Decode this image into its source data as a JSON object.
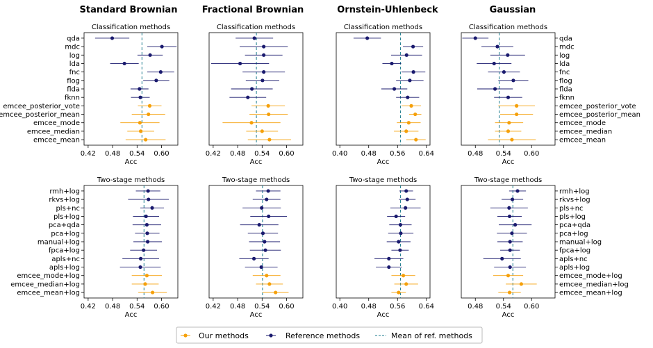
{
  "colors": {
    "ours": "#f5a00a",
    "reference": "#1a1a6e",
    "mean_line": "#1a7a8c"
  },
  "legend": {
    "ours": "Our methods",
    "reference": "Reference methods",
    "mean": "Mean of ref. methods",
    "placement": "bottom-center"
  },
  "chart_data": {
    "type": "scatter",
    "description_style": "forest plot with error bars",
    "column_titles": [
      "Standard Brownian",
      "Fractional Brownian",
      "Ornstein-Uhlenbeck",
      "Gaussian"
    ],
    "row_titles": [
      "Classification methods",
      "Two-stage methods"
    ],
    "xlabel": "Acc",
    "xticks": [
      [
        0.42,
        0.48,
        0.54,
        0.6
      ],
      [
        0.42,
        0.48,
        0.54,
        0.6
      ],
      [
        0.4,
        0.48,
        0.56,
        0.64
      ],
      [
        0.48,
        0.54,
        0.6
      ]
    ],
    "xlim": [
      [
        0.41,
        0.64
      ],
      [
        0.41,
        0.64
      ],
      [
        0.39,
        0.65
      ],
      [
        0.45,
        0.65
      ]
    ],
    "categories": [
      [
        "qda",
        "mdc",
        "log",
        "lda",
        "fnc",
        "flog",
        "flda",
        "fknn",
        "emcee_posterior_vote",
        "emcee_posterior_mean",
        "emcee_mode",
        "emcee_median",
        "emcee_mean"
      ],
      [
        "rmh+log",
        "rkvs+log",
        "pls+nc",
        "pls+log",
        "pca+qda",
        "pca+log",
        "manual+log",
        "fpca+log",
        "apls+nc",
        "apls+log",
        "emcee_mode+log",
        "emcee_median+log",
        "emcee_mean+log"
      ]
    ],
    "group": [
      [
        "ref",
        "ref",
        "ref",
        "ref",
        "ref",
        "ref",
        "ref",
        "ref",
        "ours",
        "ours",
        "ours",
        "ours",
        "ours"
      ],
      [
        "ref",
        "ref",
        "ref",
        "ref",
        "ref",
        "ref",
        "ref",
        "ref",
        "ref",
        "ref",
        "ours",
        "ours",
        "ours"
      ]
    ],
    "panels": [
      {
        "row": 0,
        "col": 0,
        "mean": 0.552,
        "values": [
          0.479,
          0.601,
          0.572,
          0.509,
          0.598,
          0.587,
          0.546,
          0.548,
          0.571,
          0.568,
          0.547,
          0.549,
          0.561
        ],
        "err": [
          0.042,
          0.036,
          0.031,
          0.035,
          0.033,
          0.032,
          0.022,
          0.023,
          0.029,
          0.041,
          0.048,
          0.033,
          0.049
        ]
      },
      {
        "row": 0,
        "col": 1,
        "mean": 0.526,
        "values": [
          0.521,
          0.544,
          0.544,
          0.486,
          0.544,
          0.541,
          0.515,
          0.505,
          0.555,
          0.556,
          0.514,
          0.54,
          0.558
        ],
        "err": [
          0.046,
          0.059,
          0.046,
          0.071,
          0.052,
          0.041,
          0.051,
          0.045,
          0.041,
          0.047,
          0.071,
          0.039,
          0.053
        ]
      },
      {
        "row": 0,
        "col": 2,
        "mean": 0.568,
        "values": [
          0.476,
          0.603,
          0.585,
          0.544,
          0.604,
          0.594,
          0.551,
          0.588,
          0.598,
          0.609,
          0.591,
          0.584,
          0.611
        ],
        "err": [
          0.038,
          0.028,
          0.043,
          0.026,
          0.033,
          0.038,
          0.036,
          0.032,
          0.027,
          0.017,
          0.033,
          0.034,
          0.027
        ]
      },
      {
        "row": 1,
        "col": 0,
        "mean": 0.557,
        "values": [
          0.567,
          0.568,
          0.577,
          0.562,
          0.564,
          0.565,
          0.566,
          0.556,
          0.549,
          0.548,
          0.564,
          0.56,
          0.578
        ],
        "err": [
          0.03,
          0.05,
          0.029,
          0.032,
          0.035,
          0.03,
          0.035,
          0.033,
          0.045,
          0.05,
          0.037,
          0.033,
          0.035
        ]
      },
      {
        "row": 1,
        "col": 1,
        "mean": 0.541,
        "values": [
          0.555,
          0.551,
          0.539,
          0.556,
          0.533,
          0.542,
          0.546,
          0.548,
          0.52,
          0.538,
          0.551,
          0.558,
          0.573
        ],
        "err": [
          0.03,
          0.034,
          0.047,
          0.045,
          0.047,
          0.037,
          0.038,
          0.038,
          0.036,
          0.04,
          0.034,
          0.033,
          0.032
        ]
      },
      {
        "row": 1,
        "col": 2,
        "mean": 0.568,
        "values": [
          0.584,
          0.587,
          0.582,
          0.556,
          0.568,
          0.569,
          0.563,
          0.567,
          0.536,
          0.536,
          0.576,
          0.584,
          0.563
        ],
        "err": [
          0.019,
          0.023,
          0.042,
          0.025,
          0.031,
          0.035,
          0.033,
          0.024,
          0.04,
          0.036,
          0.033,
          0.033,
          0.02
        ]
      },
      {
        "row": 0,
        "col": 3,
        "mean": 0.531,
        "values": [
          0.48,
          0.527,
          0.549,
          0.52,
          0.541,
          0.561,
          0.522,
          0.55,
          0.568,
          0.568,
          0.552,
          0.55,
          0.558
        ],
        "err": [
          0.028,
          0.034,
          0.037,
          0.037,
          0.034,
          0.032,
          0.038,
          0.03,
          0.039,
          0.035,
          0.03,
          0.028,
          0.051
        ]
      },
      {
        "row": 1,
        "col": 3,
        "mean": 0.56,
        "values": [
          0.57,
          0.559,
          0.552,
          0.553,
          0.565,
          0.558,
          0.554,
          0.554,
          0.537,
          0.554,
          0.55,
          0.578,
          0.553
        ],
        "err": [
          0.018,
          0.023,
          0.04,
          0.026,
          0.035,
          0.032,
          0.027,
          0.021,
          0.04,
          0.034,
          0.032,
          0.033,
          0.024
        ]
      }
    ]
  }
}
